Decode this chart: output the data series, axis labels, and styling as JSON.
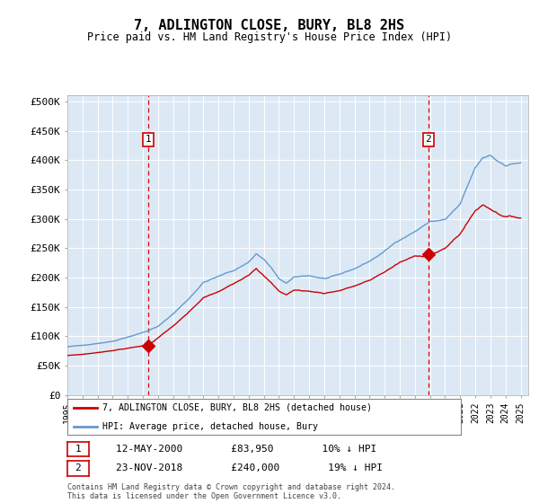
{
  "title": "7, ADLINGTON CLOSE, BURY, BL8 2HS",
  "subtitle": "Price paid vs. HM Land Registry's House Price Index (HPI)",
  "ytick_labels": [
    "£0",
    "£50K",
    "£100K",
    "£150K",
    "£200K",
    "£250K",
    "£300K",
    "£350K",
    "£400K",
    "£450K",
    "£500K"
  ],
  "yticks": [
    0,
    50000,
    100000,
    150000,
    200000,
    250000,
    300000,
    350000,
    400000,
    450000,
    500000
  ],
  "ylim": [
    0,
    510000
  ],
  "xlim_start": 1995.0,
  "xlim_end": 2025.5,
  "fig_bg_color": "#ffffff",
  "plot_bg_color": "#dce9f5",
  "red_line_color": "#cc0000",
  "blue_line_color": "#6699cc",
  "transaction1_price": 83950,
  "transaction1_x": 2000.37,
  "transaction2_price": 240000,
  "transaction2_x": 2018.9,
  "legend_label_red": "7, ADLINGTON CLOSE, BURY, BL8 2HS (detached house)",
  "legend_label_blue": "HPI: Average price, detached house, Bury",
  "annotation1": [
    "1",
    "12-MAY-2000",
    "£83,950",
    "10% ↓ HPI"
  ],
  "annotation2": [
    "2",
    "23-NOV-2018",
    "£240,000",
    "19% ↓ HPI"
  ],
  "footer": "Contains HM Land Registry data © Crown copyright and database right 2024.\nThis data is licensed under the Open Government Licence v3.0."
}
